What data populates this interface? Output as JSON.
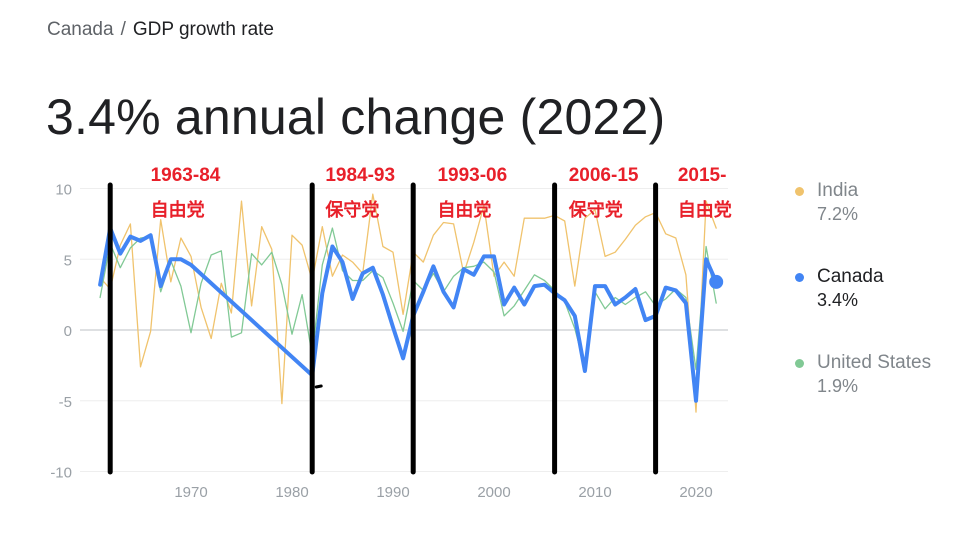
{
  "breadcrumb": {
    "parent": "Canada",
    "separator": "/",
    "current": "GDP growth rate"
  },
  "headline": "3.4% annual change (2022)",
  "legend": [
    {
      "name": "India",
      "value": "7.2%",
      "color": "#f0c36d",
      "state": "muted"
    },
    {
      "name": "Canada",
      "value": "3.4%",
      "color": "#4285f4",
      "state": "active"
    },
    {
      "name": "United States",
      "value": "1.9%",
      "color": "#81c995",
      "state": "muted"
    }
  ],
  "chart_data": {
    "type": "line",
    "title": "",
    "xlabel": "",
    "ylabel": "",
    "xlim": [
      1960,
      2024
    ],
    "ylim": [
      -10,
      10
    ],
    "xticks": [
      1970,
      1980,
      1990,
      2000,
      2010,
      2020
    ],
    "yticks": [
      10,
      5,
      0,
      -5,
      -10
    ],
    "grid": true,
    "series": [
      {
        "name": "Canada",
        "color": "#4285f4",
        "points": [
          [
            1961,
            3.2
          ],
          [
            1962,
            7.2
          ],
          [
            1963,
            5.4
          ],
          [
            1964,
            6.6
          ],
          [
            1965,
            6.3
          ],
          [
            1966,
            6.7
          ],
          [
            1967,
            3.1
          ],
          [
            1968,
            5.0
          ],
          [
            1969,
            5.0
          ],
          [
            1970,
            4.6
          ],
          [
            1982,
            -3.2
          ],
          [
            1983,
            2.6
          ],
          [
            1984,
            5.9
          ],
          [
            1985,
            4.8
          ],
          [
            1986,
            2.2
          ],
          [
            1987,
            4.0
          ],
          [
            1988,
            4.4
          ],
          [
            1989,
            2.5
          ],
          [
            1990,
            0.2
          ],
          [
            1991,
            -2.0
          ],
          [
            1992,
            1.0
          ],
          [
            1993,
            2.7
          ],
          [
            1994,
            4.5
          ],
          [
            1995,
            2.7
          ],
          [
            1996,
            1.6
          ],
          [
            1997,
            4.3
          ],
          [
            1998,
            3.9
          ],
          [
            1999,
            5.2
          ],
          [
            2000,
            5.2
          ],
          [
            2001,
            1.8
          ],
          [
            2002,
            3.0
          ],
          [
            2003,
            1.8
          ],
          [
            2004,
            3.1
          ],
          [
            2005,
            3.2
          ],
          [
            2006,
            2.6
          ],
          [
            2007,
            2.1
          ],
          [
            2008,
            1.0
          ],
          [
            2009,
            -2.9
          ],
          [
            2010,
            3.1
          ],
          [
            2011,
            3.1
          ],
          [
            2012,
            1.8
          ],
          [
            2013,
            2.3
          ],
          [
            2014,
            2.9
          ],
          [
            2015,
            0.7
          ],
          [
            2016,
            1.0
          ],
          [
            2017,
            3.0
          ],
          [
            2018,
            2.8
          ],
          [
            2019,
            1.9
          ],
          [
            2020,
            -5.0
          ],
          [
            2021,
            5.0
          ],
          [
            2022,
            3.4
          ]
        ]
      },
      {
        "name": "India",
        "color": "#f0c36d",
        "points": [
          [
            1961,
            3.7
          ],
          [
            1962,
            2.9
          ],
          [
            1963,
            6.0
          ],
          [
            1964,
            7.5
          ],
          [
            1965,
            -2.6
          ],
          [
            1966,
            -0.1
          ],
          [
            1967,
            7.8
          ],
          [
            1968,
            3.4
          ],
          [
            1969,
            6.5
          ],
          [
            1970,
            5.2
          ],
          [
            1971,
            1.6
          ],
          [
            1972,
            -0.6
          ],
          [
            1973,
            3.3
          ],
          [
            1974,
            1.2
          ],
          [
            1975,
            9.1
          ],
          [
            1976,
            1.7
          ],
          [
            1977,
            7.3
          ],
          [
            1978,
            5.7
          ],
          [
            1979,
            -5.2
          ],
          [
            1980,
            6.7
          ],
          [
            1981,
            6.0
          ],
          [
            1982,
            3.5
          ],
          [
            1983,
            7.3
          ],
          [
            1984,
            3.8
          ],
          [
            1985,
            5.3
          ],
          [
            1986,
            4.8
          ],
          [
            1987,
            4.0
          ],
          [
            1988,
            9.6
          ],
          [
            1989,
            5.9
          ],
          [
            1990,
            5.5
          ],
          [
            1991,
            1.1
          ],
          [
            1992,
            5.5
          ],
          [
            1993,
            4.8
          ],
          [
            1994,
            6.7
          ],
          [
            1995,
            7.6
          ],
          [
            1996,
            7.5
          ],
          [
            1997,
            4.0
          ],
          [
            1998,
            6.2
          ],
          [
            1999,
            8.8
          ],
          [
            2000,
            3.8
          ],
          [
            2001,
            4.8
          ],
          [
            2002,
            3.8
          ],
          [
            2003,
            7.9
          ],
          [
            2004,
            7.9
          ],
          [
            2005,
            7.9
          ],
          [
            2006,
            8.1
          ],
          [
            2007,
            7.7
          ],
          [
            2008,
            3.1
          ],
          [
            2009,
            7.9
          ],
          [
            2010,
            8.5
          ],
          [
            2011,
            5.2
          ],
          [
            2012,
            5.5
          ],
          [
            2013,
            6.4
          ],
          [
            2014,
            7.4
          ],
          [
            2015,
            8.0
          ],
          [
            2016,
            8.3
          ],
          [
            2017,
            6.8
          ],
          [
            2018,
            6.5
          ],
          [
            2019,
            3.9
          ],
          [
            2020,
            -5.8
          ],
          [
            2021,
            9.1
          ],
          [
            2022,
            7.2
          ]
        ]
      },
      {
        "name": "United States",
        "color": "#81c995",
        "points": [
          [
            1961,
            2.3
          ],
          [
            1962,
            6.1
          ],
          [
            1963,
            4.4
          ],
          [
            1964,
            5.8
          ],
          [
            1965,
            6.5
          ],
          [
            1966,
            6.6
          ],
          [
            1967,
            2.7
          ],
          [
            1968,
            4.9
          ],
          [
            1969,
            3.1
          ],
          [
            1970,
            -0.2
          ],
          [
            1971,
            3.3
          ],
          [
            1972,
            5.3
          ],
          [
            1973,
            5.6
          ],
          [
            1974,
            -0.5
          ],
          [
            1975,
            -0.2
          ],
          [
            1976,
            5.4
          ],
          [
            1977,
            4.6
          ],
          [
            1978,
            5.5
          ],
          [
            1979,
            3.2
          ],
          [
            1980,
            -0.3
          ],
          [
            1981,
            2.5
          ],
          [
            1982,
            -1.8
          ],
          [
            1983,
            4.6
          ],
          [
            1984,
            7.2
          ],
          [
            1985,
            4.2
          ],
          [
            1986,
            3.5
          ],
          [
            1987,
            3.5
          ],
          [
            1988,
            4.2
          ],
          [
            1989,
            3.7
          ],
          [
            1990,
            1.9
          ],
          [
            1991,
            -0.1
          ],
          [
            1992,
            3.5
          ],
          [
            1993,
            2.8
          ],
          [
            1994,
            4.0
          ],
          [
            1995,
            2.7
          ],
          [
            1996,
            3.8
          ],
          [
            1997,
            4.4
          ],
          [
            1998,
            4.5
          ],
          [
            1999,
            4.8
          ],
          [
            2000,
            4.1
          ],
          [
            2001,
            1.0
          ],
          [
            2002,
            1.7
          ],
          [
            2003,
            2.8
          ],
          [
            2004,
            3.9
          ],
          [
            2005,
            3.5
          ],
          [
            2006,
            2.8
          ],
          [
            2007,
            2.0
          ],
          [
            2008,
            0.1
          ],
          [
            2009,
            -2.6
          ],
          [
            2010,
            2.7
          ],
          [
            2011,
            1.5
          ],
          [
            2012,
            2.3
          ],
          [
            2013,
            1.8
          ],
          [
            2014,
            2.3
          ],
          [
            2015,
            2.7
          ],
          [
            2016,
            1.7
          ],
          [
            2017,
            2.2
          ],
          [
            2018,
            2.9
          ],
          [
            2019,
            2.3
          ],
          [
            2020,
            -2.8
          ],
          [
            2021,
            5.9
          ],
          [
            2022,
            1.9
          ]
        ]
      }
    ],
    "annotations": {
      "dividers": [
        1962,
        1982,
        1992,
        2006,
        2016
      ],
      "labels": [
        {
          "years": "1963-84",
          "party": "自由党",
          "x": 1966
        },
        {
          "years": "1984-93",
          "party": "保守党",
          "x": 1983.3
        },
        {
          "years": "1993-06",
          "party": "自由党",
          "x": 1994.4
        },
        {
          "years": "2006-15",
          "party": "保守党",
          "x": 2007.4
        },
        {
          "years": "2015-",
          "party": "自由党",
          "x": 2018.2
        }
      ],
      "label_color": "#e8202a"
    }
  }
}
